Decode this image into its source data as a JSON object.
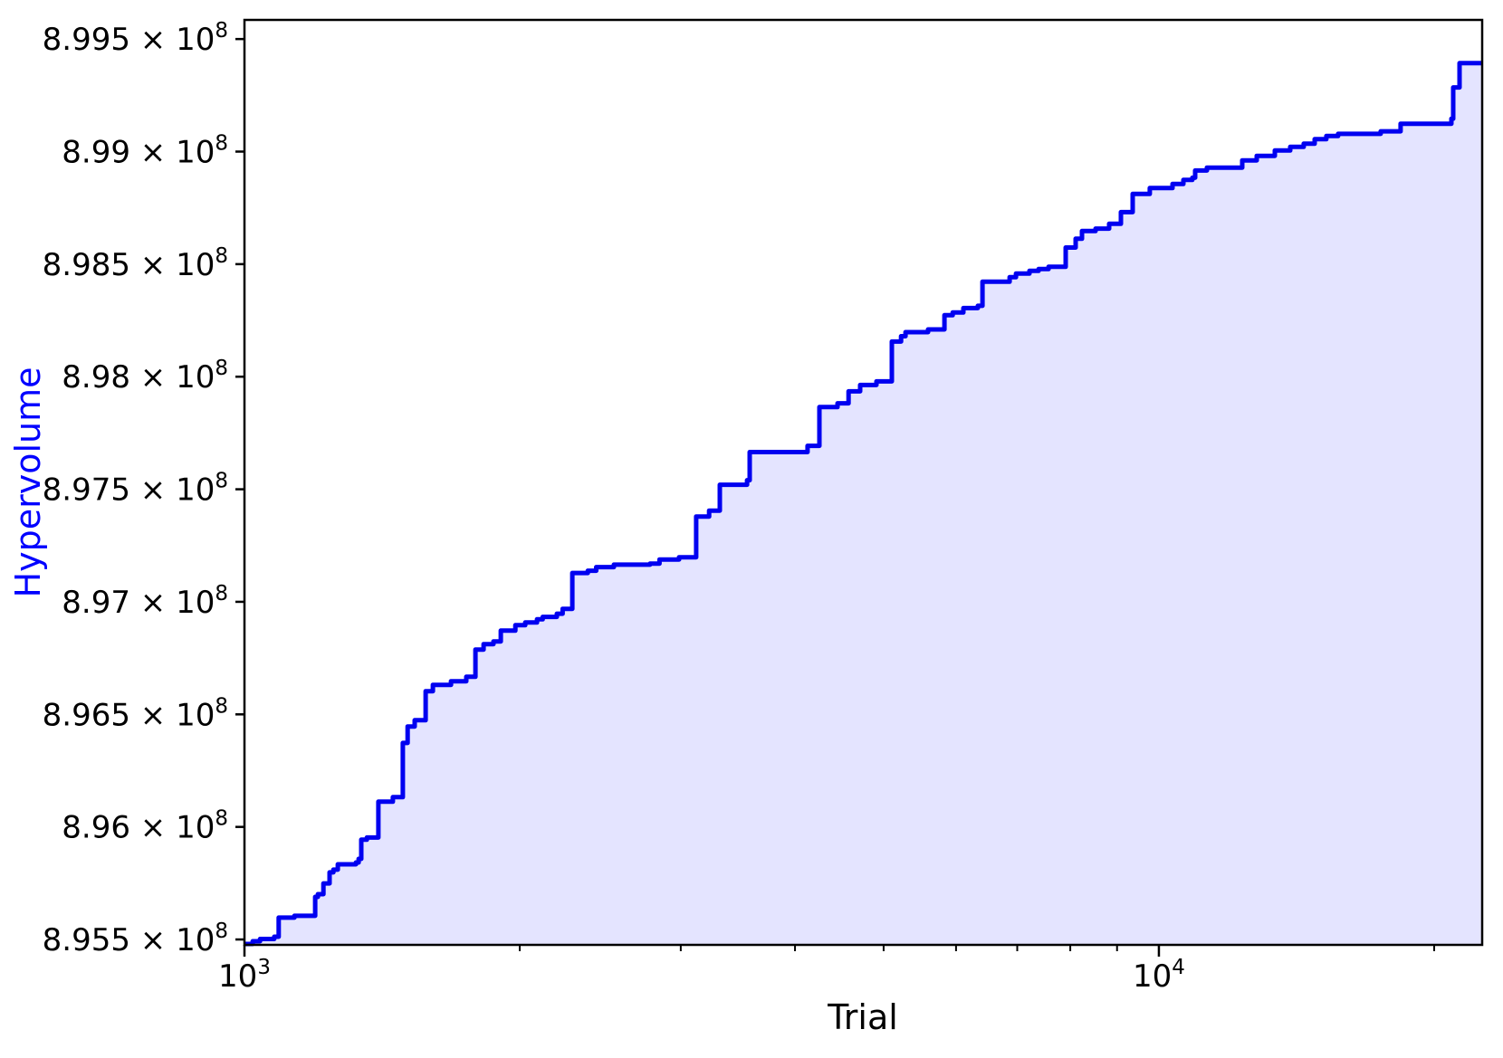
{
  "figure": {
    "xlabel": "Trial",
    "ylabel": "Hypervolume",
    "colors": {
      "line": "#0000f0",
      "fill": "#0000ff",
      "fill_opacity": 0.105,
      "ylabel_color": "#0000ff",
      "axis": "#000000",
      "background": "#ffffff"
    },
    "y_ticks": [
      {
        "text": "8.955 × 10",
        "exp": "8",
        "value": 895500000
      },
      {
        "text": "8.96 × 10",
        "exp": "8",
        "value": 896000000
      },
      {
        "text": "8.965 × 10",
        "exp": "8",
        "value": 896500000
      },
      {
        "text": "8.97 × 10",
        "exp": "8",
        "value": 897000000
      },
      {
        "text": "8.975 × 10",
        "exp": "8",
        "value": 897500000
      },
      {
        "text": "8.98 × 10",
        "exp": "8",
        "value": 898000000
      },
      {
        "text": "8.985 × 10",
        "exp": "8",
        "value": 898500000
      },
      {
        "text": "8.99 × 10",
        "exp": "8",
        "value": 899000000
      },
      {
        "text": "8.995 × 10",
        "exp": "8",
        "value": 899500000
      }
    ],
    "x_major_ticks": [
      {
        "text": "10",
        "exp": "3",
        "value": 1000
      },
      {
        "text": "10",
        "exp": "4",
        "value": 10000
      }
    ],
    "x_minor_ticks": [
      2000,
      3000,
      4000,
      5000,
      6000,
      7000,
      8000,
      9000,
      20000
    ]
  },
  "chart_data": {
    "type": "line",
    "step": "post",
    "title": "",
    "xlabel": "Trial",
    "ylabel": "Hypervolume",
    "x_scale": "log",
    "y_scale": "linear",
    "grid": false,
    "legend": null,
    "xlim": [
      1000,
      22570
    ],
    "ylim": [
      895476000,
      899585000
    ],
    "series": [
      {
        "name": "Hypervolume",
        "x": [
          1000,
          1021,
          1040,
          1078,
          1090,
          1134,
          1195,
          1203,
          1220,
          1239,
          1251,
          1265,
          1324,
          1333,
          1342,
          1361,
          1401,
          1453,
          1490,
          1508,
          1535,
          1578,
          1607,
          1682,
          1748,
          1789,
          1826,
          1872,
          1907,
          1978,
          2028,
          2089,
          2119,
          2196,
          2228,
          2283,
          2374,
          2425,
          2535,
          2777,
          2844,
          2987,
          3119,
          3222,
          3310,
          3545,
          3569,
          4128,
          4253,
          4452,
          4577,
          4713,
          4910,
          5104,
          5225,
          5283,
          5592,
          5827,
          5949,
          6112,
          6339,
          6413,
          6867,
          6977,
          7219,
          7386,
          7574,
          7908,
          8109,
          8240,
          8525,
          8822,
          9087,
          9361,
          9774,
          10348,
          10635,
          10879,
          10955,
          11286,
          12334,
          12793,
          13389,
          13918,
          14402,
          14804,
          15245,
          15705,
          17480,
          18380,
          20887,
          20980,
          21320,
          22570
        ],
        "y": [
          895480000,
          895492000,
          895502000,
          895512000,
          895597000,
          895605000,
          895689000,
          895701000,
          895749000,
          895798000,
          895810000,
          895834000,
          895842000,
          895858000,
          895943000,
          895953000,
          896112000,
          896132000,
          896373000,
          896446000,
          896474000,
          896603000,
          896631000,
          896647000,
          896667000,
          896788000,
          896812000,
          896824000,
          896872000,
          896896000,
          896908000,
          896922000,
          896933000,
          896947000,
          896969000,
          897128000,
          897138000,
          897154000,
          897165000,
          897170000,
          897188000,
          897198000,
          897379000,
          897405000,
          897520000,
          897540000,
          897665000,
          897693000,
          897865000,
          897882000,
          897935000,
          897963000,
          897979000,
          898156000,
          898180000,
          898198000,
          898210000,
          898273000,
          898285000,
          898305000,
          898315000,
          898422000,
          898442000,
          898458000,
          898470000,
          898478000,
          898488000,
          898574000,
          898613000,
          898647000,
          898658000,
          898679000,
          898731000,
          898812000,
          898838000,
          898856000,
          898874000,
          898884000,
          898916000,
          898929000,
          898961000,
          898981000,
          899005000,
          899021000,
          899035000,
          899055000,
          899069000,
          899079000,
          899090000,
          899124000,
          899146000,
          899285000,
          899393000,
          899393000
        ]
      }
    ]
  }
}
